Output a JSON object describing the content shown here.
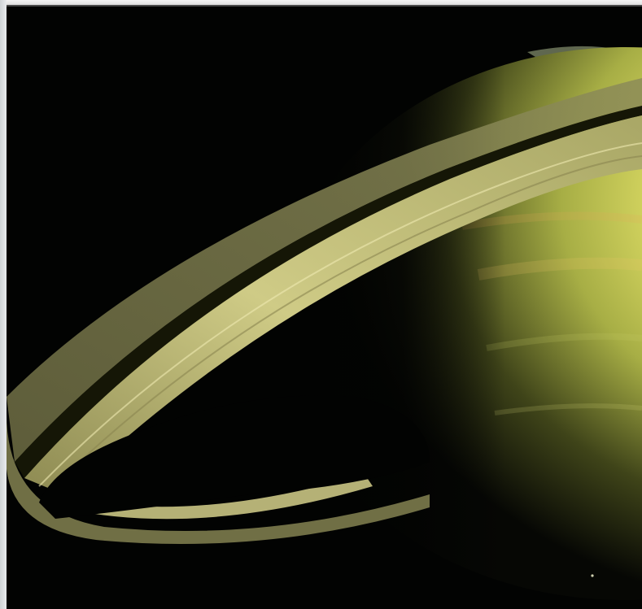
{
  "photo": {
    "subject": "saturn-planet-photograph",
    "colors": {
      "space": "#020302",
      "planet_light": "#f7f27a",
      "planet_mid": "#b9c04f",
      "planet_dark": "#2a2e12",
      "ring_light": "#d9d58f",
      "ring_mid": "#9a9a5c",
      "ring_dark": "#5c5e36",
      "frame": "#e4e6e8"
    }
  }
}
